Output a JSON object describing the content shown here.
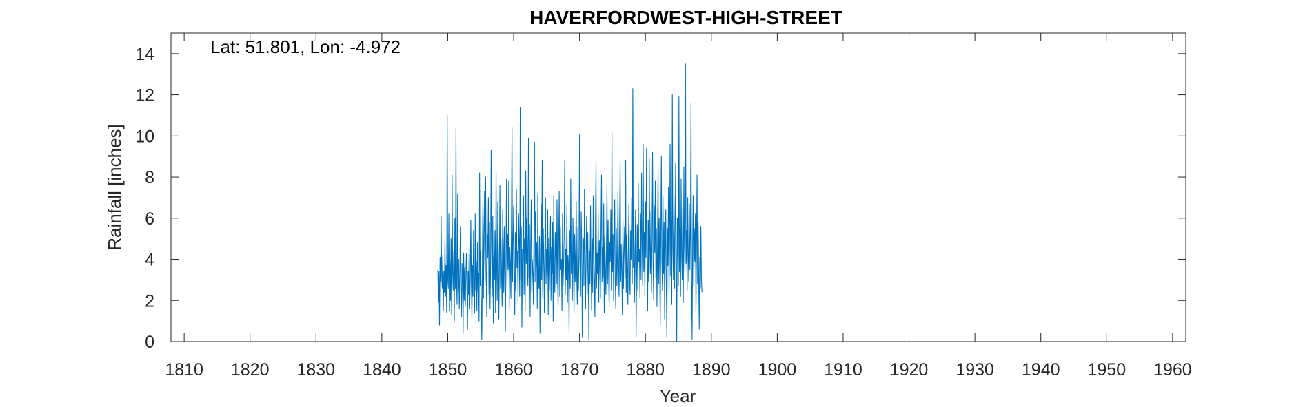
{
  "chart_data": {
    "type": "line",
    "title": "HAVERFORDWEST-HIGH-STREET",
    "annotation": "Lat: 51.801, Lon: -4.972",
    "xlabel": "Year",
    "ylabel": "Rainfall [inches]",
    "xlim": [
      1808,
      1962
    ],
    "ylim": [
      0,
      15
    ],
    "xticks": [
      1810,
      1820,
      1830,
      1840,
      1850,
      1860,
      1870,
      1880,
      1890,
      1900,
      1910,
      1920,
      1930,
      1940,
      1950,
      1960
    ],
    "yticks": [
      0,
      2,
      4,
      6,
      8,
      10,
      12,
      14
    ],
    "grid": false,
    "line_color": "#0072BD",
    "series": [
      {
        "x_start": 1848.5,
        "x_step": 0.08333,
        "values": [
          3.5,
          1.9,
          3.4,
          0.8,
          4.1,
          2.9,
          6.1,
          3.2,
          2.6,
          4.2,
          1.5,
          3.4,
          2.4,
          5.1,
          2.2,
          3.7,
          1.4,
          11.0,
          3.1,
          2.6,
          6.2,
          1.5,
          3.9,
          2.0,
          5.0,
          1.3,
          8.1,
          3.3,
          2.5,
          4.4,
          1.0,
          6.0,
          2.6,
          10.4,
          3.0,
          1.8,
          7.2,
          2.4,
          4.0,
          1.6,
          3.1,
          5.6,
          2.7,
          1.2,
          3.8,
          2.9,
          0.4,
          4.3,
          2.0,
          3.6,
          1.7,
          3.2,
          4.3,
          2.6,
          0.6,
          3.4,
          2.3,
          4.6,
          1.6,
          3.1,
          5.9,
          2.8,
          1.1,
          3.7,
          2.2,
          5.4,
          3.0,
          1.4,
          6.2,
          2.5,
          3.9,
          1.5,
          4.8,
          2.4,
          3.3,
          1.0,
          8.2,
          2.7,
          4.4,
          1.8,
          0.1,
          3.6,
          6.8,
          2.1,
          5.5,
          7.3,
          2.9,
          8.0,
          3.4,
          1.2,
          5.2,
          4.1,
          7.0,
          2.3,
          5.8,
          1.6,
          3.5,
          9.3,
          4.6,
          2.2,
          6.1,
          0.9,
          4.2,
          3.0,
          5.4,
          1.4,
          8.2,
          3.9,
          2.0,
          6.8,
          4.4,
          1.1,
          3.7,
          7.6,
          2.6,
          5.0,
          3.3,
          1.7,
          6.4,
          4.8,
          2.4,
          5.6,
          3.1,
          0.5,
          4.0,
          7.9,
          2.8,
          5.2,
          3.5,
          7.8,
          1.6,
          4.6,
          3.8,
          2.1,
          5.9,
          10.4,
          2.9,
          4.8,
          6.6,
          3.2,
          1.3,
          5.3,
          2.5,
          7.4,
          3.6,
          4.4,
          1.9,
          6.2,
          4.9,
          2.2,
          11.4,
          3.0,
          5.6,
          0.7,
          4.5,
          3.9,
          7.1,
          2.3,
          5.0,
          1.5,
          8.3,
          3.8,
          6.0,
          4.2,
          2.7,
          9.9,
          3.1,
          5.7,
          1.2,
          4.6,
          6.9,
          2.4,
          4.0,
          3.3,
          1.8,
          5.4,
          9.7,
          2.9,
          6.3,
          3.7,
          4.8,
          1.6,
          7.2,
          3.4,
          2.6,
          5.1,
          0.4,
          4.3,
          6.7,
          3.0,
          8.8,
          2.1,
          5.5,
          3.8,
          1.4,
          4.9,
          7.0,
          2.8,
          4.5,
          3.2,
          6.4,
          1.3,
          5.0,
          2.5,
          3.9,
          6.1,
          2.0,
          4.6,
          3.3,
          5.8,
          1.0,
          7.1,
          3.6,
          2.4,
          5.3,
          4.2,
          2.8,
          6.9,
          3.1,
          1.7,
          4.8,
          7.3,
          2.2,
          5.6,
          3.5,
          4.0,
          1.5,
          6.2,
          2.7,
          3.8,
          5.1,
          8.8,
          2.3,
          4.5,
          3.0,
          6.7,
          1.9,
          4.2,
          3.6,
          0.4,
          5.4,
          2.6,
          7.9,
          3.3,
          4.7,
          2.0,
          6.0,
          3.8,
          1.4,
          5.2,
          2.9,
          4.4,
          6.8,
          3.1,
          1.8,
          5.6,
          2.5,
          4.1,
          10.1,
          3.4,
          2.2,
          6.3,
          4.8,
          0.2,
          3.6,
          5.0,
          2.7,
          7.4,
          3.9,
          1.6,
          4.6,
          6.1,
          2.3,
          5.3,
          3.2,
          0.1,
          4.4,
          2.8,
          6.6,
          3.5,
          1.5,
          5.0,
          2.4,
          7.1,
          4.0,
          3.0,
          1.2,
          5.7,
          8.8,
          2.6,
          4.3,
          3.3,
          6.2,
          1.9,
          4.9,
          3.7,
          2.1,
          5.4,
          8.1,
          2.9,
          4.6,
          3.1,
          6.7,
          1.4,
          5.1,
          3.6,
          2.3,
          4.4,
          7.6,
          2.8,
          5.9,
          3.2,
          1.7,
          4.8,
          3.9,
          6.4,
          2.5,
          10.2,
          3.4,
          5.2,
          2.0,
          4.6,
          6.9,
          3.0,
          1.6,
          5.5,
          2.7,
          4.1,
          7.3,
          3.5,
          2.2,
          5.8,
          8.8,
          2.9,
          4.7,
          3.3,
          1.3,
          6.0,
          2.6,
          4.4,
          5.6,
          3.1,
          8.8,
          2.4,
          5.2,
          3.8,
          1.8,
          4.9,
          6.7,
          3.0,
          2.3,
          5.4,
          4.0,
          7.0,
          2.8,
          12.3,
          3.6,
          5.1,
          1.9,
          4.3,
          6.4,
          0.2,
          3.3,
          5.7,
          2.5,
          7.7,
          3.9,
          4.5,
          2.1,
          6.2,
          3.0,
          8.2,
          4.8,
          2.7,
          9.6,
          3.4,
          5.3,
          2.2,
          6.8,
          4.1,
          9.4,
          3.6,
          1.5,
          5.9,
          2.9,
          8.9,
          4.6,
          3.3,
          6.3,
          2.4,
          5.0,
          9.2,
          3.8,
          2.0,
          6.6,
          4.3,
          7.8,
          3.1,
          5.5,
          1.7,
          4.7,
          8.4,
          2.8,
          6.0,
          3.5,
          0.8,
          5.2,
          9.0,
          4.0,
          2.5,
          7.1,
          3.3,
          5.8,
          1.1,
          4.4,
          6.4,
          2.9,
          0.2,
          5.5,
          3.7,
          7.5,
          2.3,
          4.8,
          9.6,
          3.2,
          5.9,
          1.8,
          12.0,
          4.6,
          3.0,
          7.2,
          2.6,
          5.3,
          8.7,
          3.9,
          0.0,
          6.0,
          4.4,
          2.7,
          11.9,
          3.4,
          5.6,
          2.2,
          7.9,
          4.1,
          3.0,
          6.5,
          1.9,
          8.5,
          4.7,
          3.3,
          13.5,
          3.8,
          5.4,
          2.5,
          7.0,
          4.2,
          2.9,
          6.7,
          3.5,
          5.2,
          11.6,
          3.1,
          0.1,
          4.8,
          7.1,
          2.7,
          5.5,
          3.9,
          6.2,
          1.4,
          4.5,
          8.1,
          2.8,
          5.8,
          3.3,
          0.6,
          4.1,
          2.6,
          5.6,
          3.0,
          2.4
        ]
      }
    ]
  }
}
